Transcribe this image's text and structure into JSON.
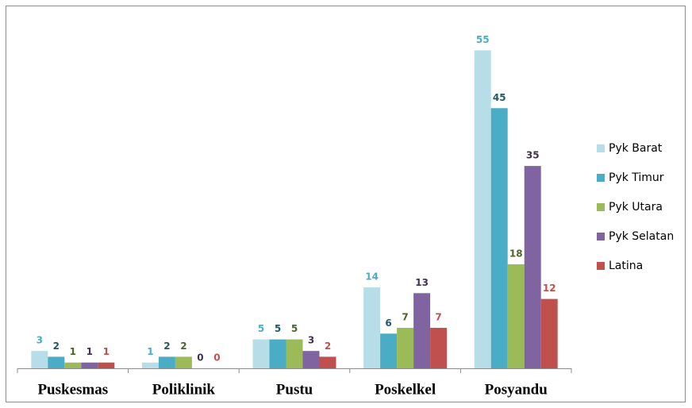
{
  "chart_data": {
    "type": "bar",
    "categories": [
      "Puskesmas",
      "Poliklinik",
      "Pustu",
      "Poskelkel",
      "Posyandu"
    ],
    "series": [
      {
        "name": "Pyk Barat",
        "color": "#b7dee8",
        "label_color": "#4bacc6",
        "values": [
          3,
          1,
          5,
          14,
          55
        ]
      },
      {
        "name": "Pyk Timur",
        "color": "#4bacc6",
        "label_color": "#215968",
        "values": [
          2,
          2,
          5,
          6,
          45
        ]
      },
      {
        "name": "Pyk Utara",
        "color": "#9bbb59",
        "label_color": "#4f6228",
        "values": [
          1,
          2,
          5,
          7,
          18
        ]
      },
      {
        "name": "Pyk Selatan",
        "color": "#8064a2",
        "label_color": "#403152",
        "values": [
          1,
          0,
          3,
          13,
          35
        ]
      },
      {
        "name": "Latina",
        "color": "#c0504d",
        "label_color": "#c0504d",
        "values": [
          1,
          0,
          2,
          7,
          12
        ]
      }
    ],
    "ylim": [
      0,
      60
    ],
    "legend": "right"
  }
}
